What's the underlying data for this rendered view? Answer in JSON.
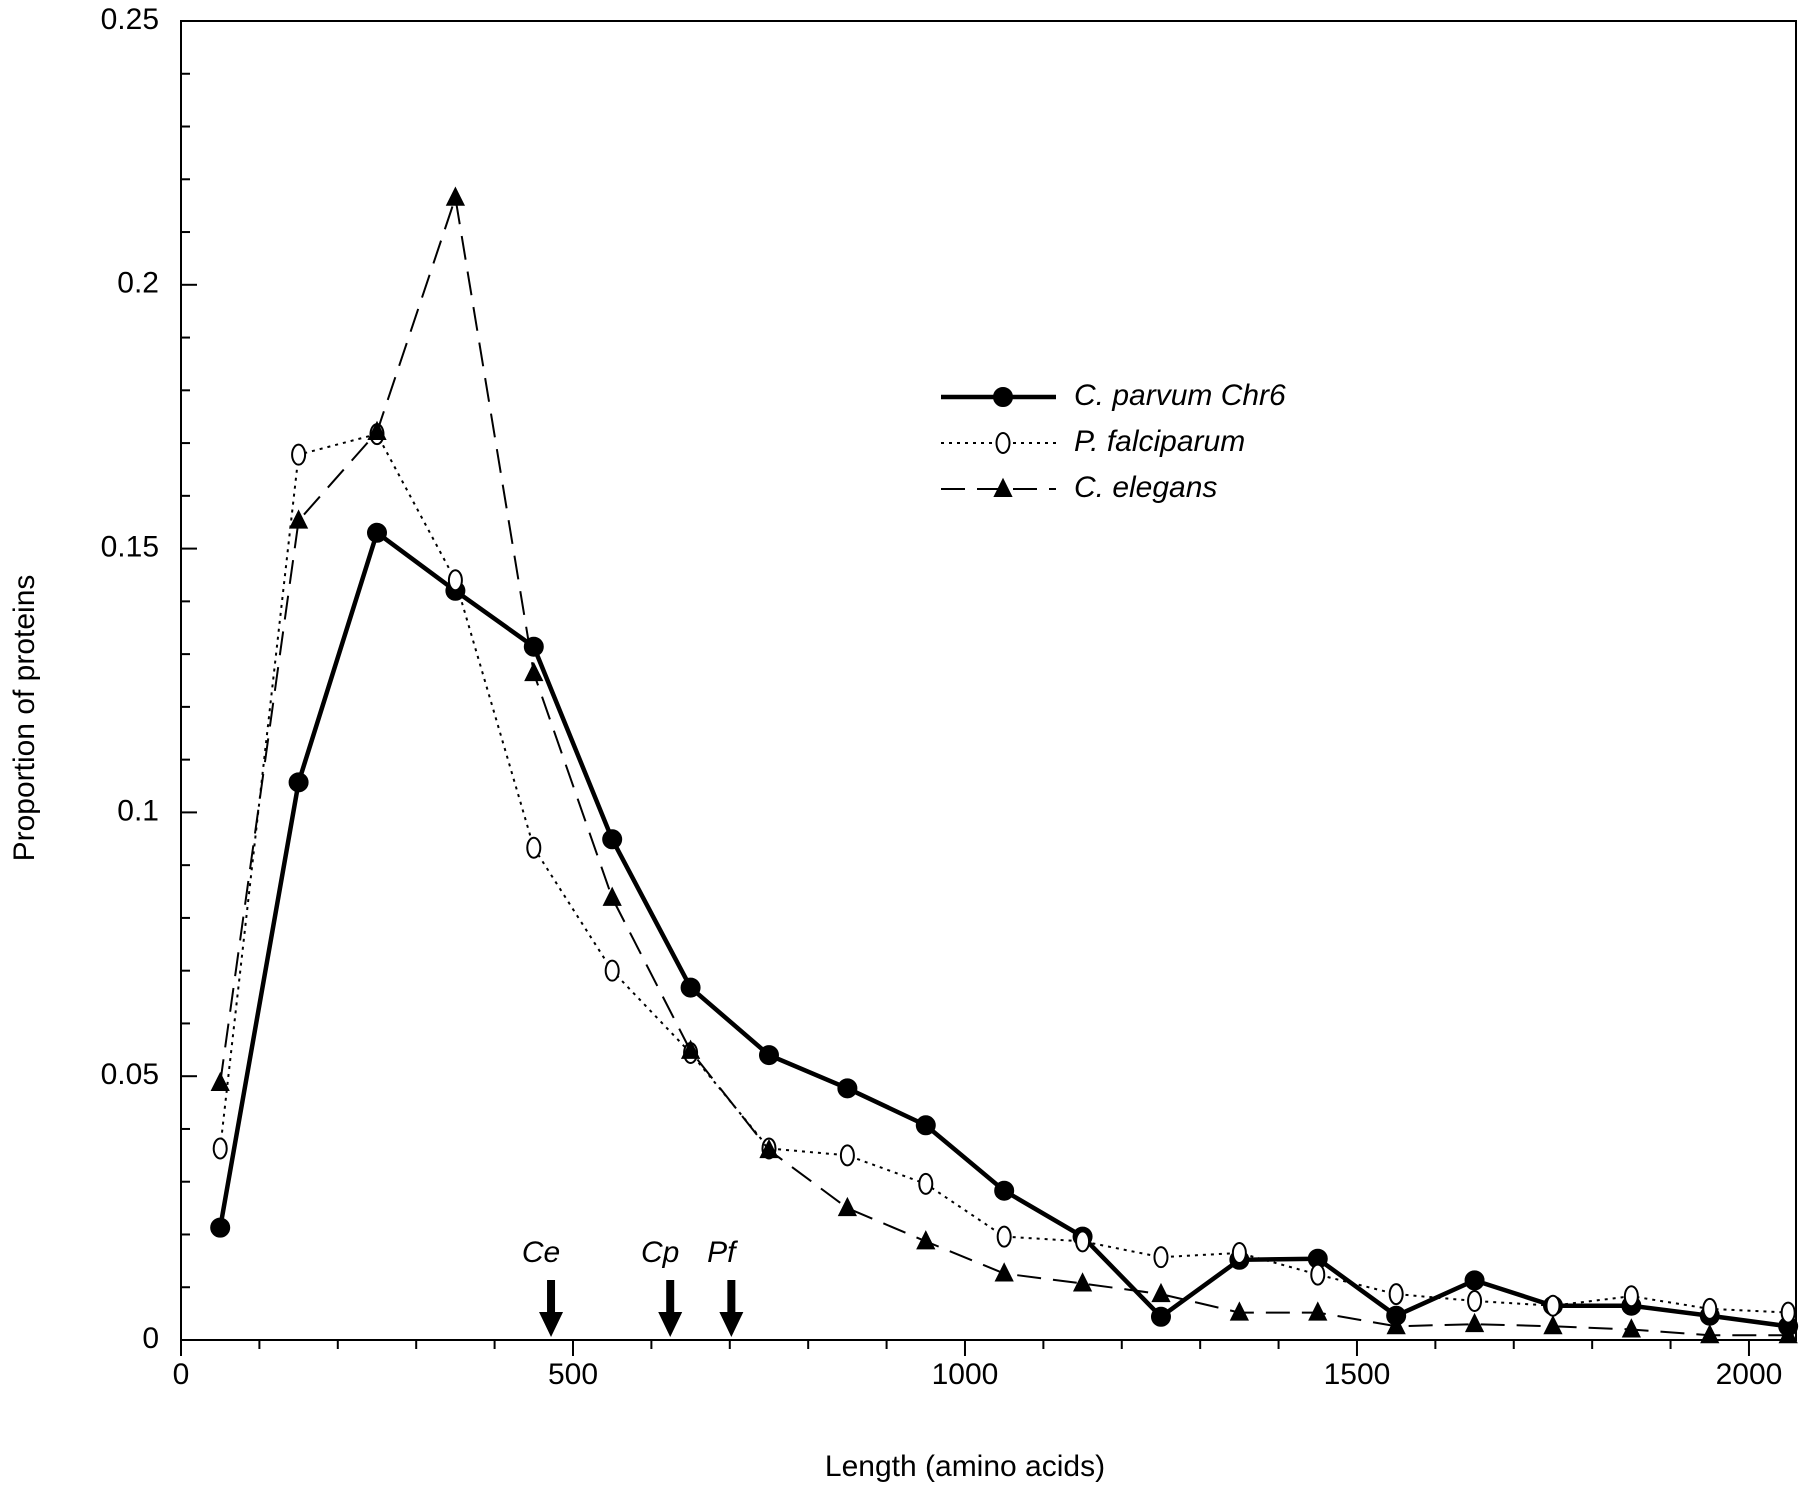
{
  "chart_data": {
    "type": "line",
    "x_label": "Length (amino acids)",
    "y_label": "Proportion of proteins",
    "x": [
      50,
      150,
      250,
      350,
      450,
      550,
      650,
      750,
      850,
      950,
      1050,
      1150,
      1250,
      1350,
      1450,
      1550,
      1650,
      1750,
      1850,
      1950,
      2050
    ],
    "series": [
      {
        "name": "C. parvum Chr6",
        "color": "#000000",
        "style": "solid",
        "marker": "filled-circle",
        "values": [
          0.0213,
          0.1057,
          0.153,
          0.142,
          0.1314,
          0.0949,
          0.0668,
          0.054,
          0.0477,
          0.0407,
          0.0283,
          0.0196,
          0.0044,
          0.0152,
          0.0154,
          0.0046,
          0.0113,
          0.0065,
          0.0065,
          0.0046,
          0.0026
        ]
      },
      {
        "name": "P. falciparum",
        "color": "#000000",
        "style": "dotted",
        "marker": "open-ellipse",
        "values": [
          0.0363,
          0.1678,
          0.1717,
          0.144,
          0.0933,
          0.07,
          0.0544,
          0.0363,
          0.035,
          0.0296,
          0.0196,
          0.0187,
          0.0157,
          0.0165,
          0.0124,
          0.0087,
          0.0074,
          0.0065,
          0.0083,
          0.0059,
          0.0052
        ]
      },
      {
        "name": "C. elegans",
        "color": "#000000",
        "style": "dashed",
        "marker": "filled-triangle",
        "values": [
          0.0487,
          0.1553,
          0.1721,
          0.2165,
          0.1264,
          0.0838,
          0.0548,
          0.036,
          0.025,
          0.0187,
          0.0126,
          0.0107,
          0.0087,
          0.0052,
          0.0052,
          0.0026,
          0.003,
          0.0026,
          0.002,
          0.0009,
          0.0009
        ]
      }
    ],
    "annotations": [
      {
        "text": "Ce",
        "x": 472
      },
      {
        "text": "Cp",
        "x": 624
      },
      {
        "text": "Pf",
        "x": 702
      }
    ],
    "xlim": [
      0,
      2060
    ],
    "ylim": [
      0,
      0.25
    ],
    "xticks": [
      0,
      500,
      1000,
      1500,
      2000
    ],
    "yticks": [
      0,
      0.05,
      0.1,
      0.15,
      0.2,
      0.25
    ],
    "xminorticks": [
      100,
      200,
      300,
      400,
      600,
      700,
      800,
      900,
      1100,
      1200,
      1300,
      1400,
      1600,
      1700,
      1800,
      1900
    ],
    "yminorticks": [
      0.01,
      0.02,
      0.03,
      0.04,
      0.06,
      0.07,
      0.08,
      0.09,
      0.11,
      0.12,
      0.13,
      0.14,
      0.16,
      0.17,
      0.18,
      0.19,
      0.21,
      0.22,
      0.23,
      0.24
    ],
    "grid": false,
    "legend": "upper-right"
  }
}
